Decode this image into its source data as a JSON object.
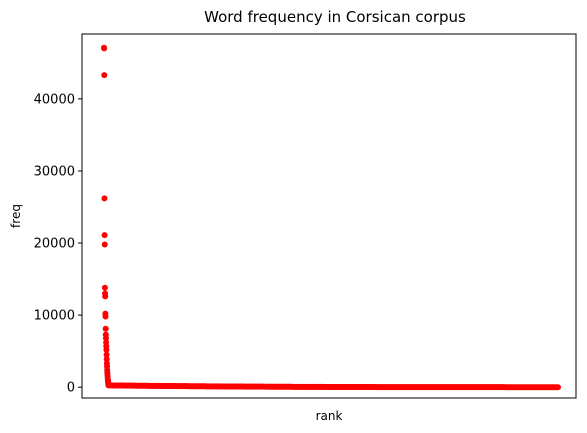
{
  "chart_data": {
    "type": "scatter",
    "title": "Word frequency in Corsican corpus",
    "xlabel": "rank",
    "ylabel": "freq",
    "xticks": "hidden",
    "ylim": [
      -1500,
      49000
    ],
    "yticks": [
      0,
      10000,
      20000,
      30000,
      40000
    ],
    "marker_color": "#ff0000",
    "grid": false,
    "series": [
      {
        "x": [
          1,
          2,
          3,
          4,
          5,
          6,
          7,
          8,
          9,
          10,
          11,
          12,
          13,
          14,
          15,
          16,
          17,
          18,
          19,
          20,
          21,
          22,
          23,
          24,
          25,
          26,
          27,
          28,
          29,
          30
        ],
        "y": [
          47100,
          47000,
          43300,
          26200,
          21100,
          19800,
          13800,
          13000,
          12600,
          10200,
          9800,
          8100,
          7300,
          6800,
          6200,
          5700,
          5200,
          4500,
          3900,
          3300,
          2900,
          2400,
          2000,
          1700,
          1400,
          1100,
          900,
          700,
          500,
          300
        ],
        "tail": {
          "x_from": 31,
          "x_to": 3000,
          "y_max": 250
        }
      }
    ]
  }
}
